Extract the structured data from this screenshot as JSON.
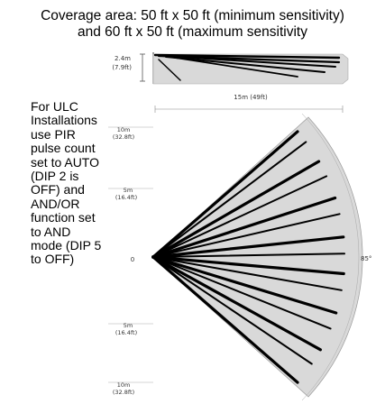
{
  "title": {
    "line1": "Coverage area: 50 ft x 50 ft (minimum sensitivity)",
    "line2": "and 60 ft x 50 ft (maximum sensitivity"
  },
  "note": {
    "lines": [
      "For ULC",
      "Installations",
      "use PIR",
      "pulse count",
      "set to AUTO",
      "(DIP 2 is",
      "OFF) and",
      "AND/OR",
      "function set",
      "to AND",
      "mode (DIP 5",
      "to OFF)"
    ]
  },
  "side_view": {
    "height_m": "2.4m",
    "height_ft": "(7.9ft)"
  },
  "top_view": {
    "range_label": "15m (49ft)",
    "angle_label": "85°",
    "origin_label": "0",
    "scale": [
      {
        "m": "10m",
        "ft": "(32.8ft)"
      },
      {
        "m": "5m",
        "ft": "(16.4ft)"
      },
      {
        "m": "5m",
        "ft": "(16.4ft)"
      },
      {
        "m": "10m",
        "ft": "(32.8ft)"
      }
    ]
  },
  "colors": {
    "fan_fill": "#d9d9d9",
    "beam": "#000000",
    "lines": "#888888"
  },
  "icons": {
    "beam_marks": "beam-line"
  }
}
